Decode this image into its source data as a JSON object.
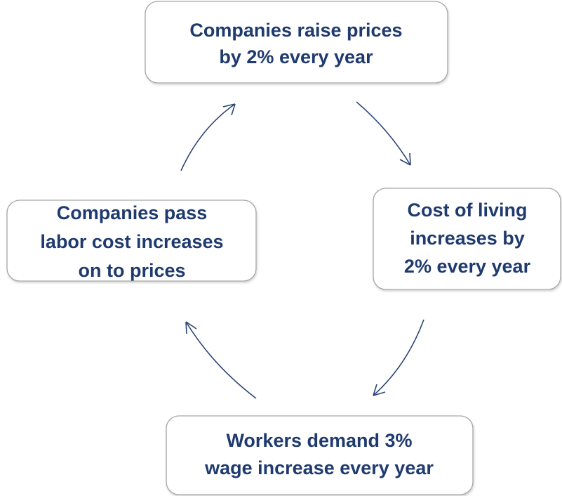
{
  "nodes": [
    {
      "lines": [
        "Companies raise prices",
        "by 2% every year"
      ]
    },
    {
      "lines": [
        "Cost of living",
        "increases by",
        "2% every year"
      ]
    },
    {
      "lines": [
        "Workers demand 3%",
        "wage increase every year"
      ]
    },
    {
      "lines": [
        "Companies pass",
        "labor cost increases",
        "on to prices"
      ]
    }
  ]
}
